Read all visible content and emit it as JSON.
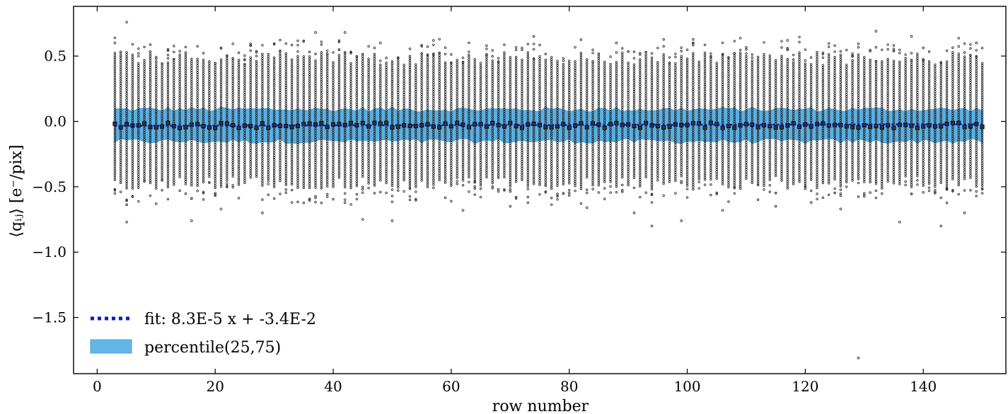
{
  "chart_data": {
    "type": "scatter",
    "title": "",
    "xlabel": "row number",
    "ylabel": "⟨qᵢⱼ⟩ [e⁻/pix]",
    "xlim": [
      -4,
      154
    ],
    "ylim": [
      -1.93,
      0.88
    ],
    "x_ticks": [
      0,
      20,
      40,
      60,
      80,
      100,
      120,
      140
    ],
    "x_tick_labels": [
      "0",
      "20",
      "40",
      "60",
      "80",
      "100",
      "120",
      "140"
    ],
    "y_ticks": [
      0.5,
      0.0,
      -0.5,
      -1.0,
      -1.5
    ],
    "y_tick_labels": [
      "0.5",
      "0.0",
      "−0.5",
      "−1.0",
      "−1.5"
    ],
    "rows": {
      "start": 3,
      "end": 150
    },
    "median_level": -0.03,
    "percentile_band": {
      "q25": -0.15,
      "q75": 0.09
    },
    "whisker_range": [
      -0.48,
      0.48
    ],
    "fit": {
      "slope": 8.3e-05,
      "intercept": -0.034
    },
    "outliers": [
      {
        "x": 5,
        "y": 0.76
      },
      {
        "x": 5,
        "y": -0.77
      },
      {
        "x": 16,
        "y": -0.76
      },
      {
        "x": 37,
        "y": 0.68
      },
      {
        "x": 42,
        "y": 0.68
      },
      {
        "x": 45,
        "y": -0.75
      },
      {
        "x": 50,
        "y": -0.76
      },
      {
        "x": 57,
        "y": 0.62
      },
      {
        "x": 74,
        "y": 0.65
      },
      {
        "x": 94,
        "y": -0.8
      },
      {
        "x": 99,
        "y": -0.76
      },
      {
        "x": 129,
        "y": -1.81
      },
      {
        "x": 132,
        "y": 0.69
      },
      {
        "x": 138,
        "y": 0.65
      },
      {
        "x": 143,
        "y": -0.8
      },
      {
        "x": 147,
        "y": -0.7
      },
      {
        "x": 3,
        "y": -0.55
      },
      {
        "x": 10,
        "y": -0.63
      },
      {
        "x": 21,
        "y": -0.67
      },
      {
        "x": 28,
        "y": -0.7
      },
      {
        "x": 33,
        "y": -0.62
      },
      {
        "x": 62,
        "y": -0.68
      },
      {
        "x": 70,
        "y": -0.65
      },
      {
        "x": 83,
        "y": -0.66
      },
      {
        "x": 91,
        "y": -0.7
      },
      {
        "x": 106,
        "y": -0.68
      },
      {
        "x": 115,
        "y": -0.65
      },
      {
        "x": 121,
        "y": -0.62
      },
      {
        "x": 126,
        "y": -0.67
      },
      {
        "x": 136,
        "y": -0.77
      },
      {
        "x": 3,
        "y": 0.6
      },
      {
        "x": 12,
        "y": 0.55
      },
      {
        "x": 26,
        "y": 0.58
      },
      {
        "x": 48,
        "y": 0.6
      },
      {
        "x": 66,
        "y": 0.58
      },
      {
        "x": 88,
        "y": 0.6
      },
      {
        "x": 101,
        "y": 0.6
      },
      {
        "x": 117,
        "y": 0.62
      },
      {
        "x": 125,
        "y": 0.58
      },
      {
        "x": 149,
        "y": 0.6
      }
    ],
    "legend": {
      "placement": "lower-left",
      "items": [
        {
          "label": "fit: 8.3E-5 x + -3.4E-2",
          "style": "dotted-line",
          "color": "#0a1fb3"
        },
        {
          "label": "percentile(25,75)",
          "style": "filled-patch",
          "color": "#63b6e6"
        }
      ]
    },
    "colors": {
      "band": "#5ab0e3",
      "band_edge": "#4aa3da",
      "points": "#222222",
      "fit": "#0a1fb3",
      "axes": "#000000"
    }
  }
}
